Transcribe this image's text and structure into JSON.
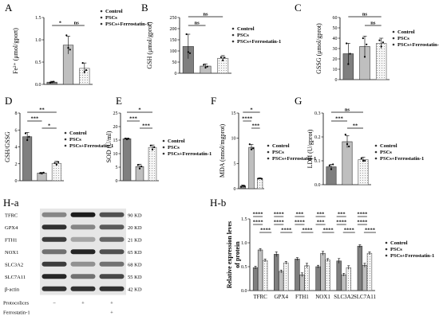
{
  "legend": [
    "Control",
    "PSCs",
    "PSCs+Ferrostatin-1"
  ],
  "styles": {
    "Control": {
      "fill": "#7f7f7f",
      "stroke": "#333333",
      "pattern": "solid"
    },
    "PSCs": {
      "fill": "#bfbfbf",
      "stroke": "#333333",
      "pattern": "solid"
    },
    "PSCs+Ferrostatin-1": {
      "fill": "#f5f5f5",
      "stroke": "#555555",
      "pattern": "dots"
    }
  },
  "chart_data": [
    {
      "id": "A",
      "panel_label": "A",
      "type": "bar",
      "ylabel": "Fe²⁺ (μmol/gport)",
      "categories": [
        "Control",
        "PSCs",
        "PSCs+Ferrostatin-1"
      ],
      "values": [
        0.05,
        0.88,
        0.36
      ],
      "errors": [
        0.02,
        0.2,
        0.12
      ],
      "points": [
        [
          0.04,
          0.05,
          0.06
        ],
        [
          1.1,
          0.82,
          0.78
        ],
        [
          0.48,
          0.28,
          0.32
        ]
      ],
      "ylim": [
        0,
        1.5
      ],
      "ticks": [
        "0.0",
        "0.5",
        "1.0",
        "1.5"
      ],
      "sig": [
        {
          "from": 0,
          "to": 1,
          "text": "*"
        },
        {
          "from": 1,
          "to": 2,
          "text": "ns"
        }
      ]
    },
    {
      "id": "B",
      "panel_label": "B",
      "type": "bar",
      "ylabel": "GSH (μmol/gprot)",
      "categories": [
        "Control",
        "PSCs",
        "PSCs+Ferrostatin-1"
      ],
      "values": [
        120,
        32,
        67
      ],
      "errors": [
        55,
        10,
        12
      ],
      "points": [
        [
          175,
          95,
          90
        ],
        [
          38,
          25,
          30
        ],
        [
          72,
          58,
          70
        ]
      ],
      "ylim": [
        0,
        250
      ],
      "ticks": [
        "0",
        "50",
        "100",
        "150",
        "200",
        "250"
      ],
      "sig": [
        {
          "from": 0,
          "to": 2,
          "text": "ns"
        },
        {
          "from": 0,
          "to": 1,
          "text": "ns"
        }
      ]
    },
    {
      "id": "C",
      "panel_label": "C",
      "type": "bar",
      "ylabel": "GSSG (μmol/gprot)",
      "categories": [
        "Control",
        "PSCs",
        "PSCs+Ferrostatin-1"
      ],
      "values": [
        25,
        32,
        35
      ],
      "errors": [
        10,
        10,
        5
      ],
      "points": [
        [
          35,
          15,
          25
        ],
        [
          40,
          22,
          34
        ],
        [
          38,
          32,
          36
        ]
      ],
      "ylim": [
        0,
        60
      ],
      "ticks": [
        "0",
        "10",
        "20",
        "30",
        "40",
        "50",
        "60"
      ],
      "sig": [
        {
          "from": 0,
          "to": 2,
          "text": "ns"
        },
        {
          "from": 1,
          "to": 2,
          "text": "ns"
        }
      ]
    },
    {
      "id": "D",
      "panel_label": "D",
      "type": "bar",
      "ylabel": "GSH/GSSG",
      "categories": [
        "Control",
        "PSCs",
        "PSCs+Ferrostatin-1"
      ],
      "values": [
        5.2,
        0.9,
        2.05
      ],
      "errors": [
        0.5,
        0.08,
        0.25
      ],
      "points": [
        [
          5.6,
          4.8,
          5.2
        ],
        [
          0.9,
          0.85,
          0.95
        ],
        [
          2.1,
          1.9,
          2.2
        ]
      ],
      "ylim": [
        0,
        8
      ],
      "ticks": [
        "0",
        "2",
        "4",
        "6",
        "8"
      ],
      "sig": [
        {
          "from": 0,
          "to": 2,
          "text": "**"
        },
        {
          "from": 0,
          "to": 1,
          "text": "***"
        },
        {
          "from": 1,
          "to": 2,
          "text": "*"
        }
      ]
    },
    {
      "id": "E",
      "panel_label": "E",
      "type": "bar",
      "ylabel": "SOD (U/ml)",
      "categories": [
        "Control",
        "PSCs",
        "PSCs+Ferrostatin-1"
      ],
      "values": [
        15.5,
        5.2,
        12.3
      ],
      "errors": [
        0.3,
        0.9,
        0.9
      ],
      "points": [
        [
          15.6,
          15.3,
          15.5
        ],
        [
          5.8,
          4.5,
          5.3
        ],
        [
          13.0,
          11.5,
          12.4
        ]
      ],
      "ylim": [
        0,
        25
      ],
      "ticks": [
        "0",
        "5",
        "10",
        "15",
        "20",
        "25"
      ],
      "sig": [
        {
          "from": 0,
          "to": 2,
          "text": "*"
        },
        {
          "from": 0,
          "to": 1,
          "text": "***"
        },
        {
          "from": 1,
          "to": 2,
          "text": "***"
        }
      ]
    },
    {
      "id": "F",
      "panel_label": "F",
      "type": "bar",
      "ylabel": "MDA (nmol/mgprot)",
      "categories": [
        "Control",
        "PSCs",
        "PSCs+Ferrostatin-1"
      ],
      "values": [
        0.5,
        8.2,
        2.0
      ],
      "errors": [
        0.2,
        0.6,
        0.1
      ],
      "points": [
        [
          0.4,
          0.6,
          0.5
        ],
        [
          8.8,
          7.8,
          8.0
        ],
        [
          2.0,
          2.05,
          1.95
        ]
      ],
      "ylim": [
        0,
        15
      ],
      "ticks": [
        "0",
        "5",
        "10",
        "15"
      ],
      "sig": [
        {
          "from": 0,
          "to": 2,
          "text": "*"
        },
        {
          "from": 0,
          "to": 1,
          "text": "****"
        },
        {
          "from": 1,
          "to": 2,
          "text": "***"
        }
      ]
    },
    {
      "id": "G",
      "panel_label": "G",
      "type": "bar",
      "ylabel": "LDH (U/gprot)",
      "categories": [
        "Control",
        "PSCs",
        "PSCs+Ferrostatin-1"
      ],
      "values": [
        0.075,
        0.18,
        0.105
      ],
      "errors": [
        0.01,
        0.025,
        0.01
      ],
      "points": [
        [
          0.08,
          0.065,
          0.085
        ],
        [
          0.21,
          0.17,
          0.16
        ],
        [
          0.11,
          0.1,
          0.1
        ]
      ],
      "ylim": [
        0,
        0.3
      ],
      "ticks": [
        "0.0",
        "0.1",
        "0.2",
        "0.3"
      ],
      "sig": [
        {
          "from": 0,
          "to": 2,
          "text": "ns"
        },
        {
          "from": 0,
          "to": 1,
          "text": "***"
        },
        {
          "from": 1,
          "to": 2,
          "text": "**"
        }
      ]
    },
    {
      "id": "H-b",
      "panel_label": "H-b",
      "type": "bar",
      "ylabel": [
        "Relative expression leves",
        "of protein"
      ],
      "categories": [
        "TFRC",
        "GPX4",
        "FTH1",
        "NOX1",
        "SLC3A2",
        "SLC7A11"
      ],
      "series": [
        {
          "name": "Control",
          "values": [
            0.48,
            0.76,
            0.66,
            0.5,
            0.62,
            0.93
          ],
          "errors": [
            0.03,
            0.05,
            0.03,
            0.03,
            0.05,
            0.03
          ]
        },
        {
          "name": "PSCs",
          "values": [
            0.85,
            0.4,
            0.33,
            0.78,
            0.33,
            0.53
          ],
          "errors": [
            0.03,
            0.03,
            0.04,
            0.04,
            0.03,
            0.04
          ]
        },
        {
          "name": "PSCs+Ferrostatin-1",
          "values": [
            0.63,
            0.58,
            0.52,
            0.64,
            0.48,
            0.78
          ],
          "errors": [
            0.03,
            0.03,
            0.05,
            0.03,
            0.04,
            0.03
          ]
        }
      ],
      "ylim": [
        0,
        1.5
      ],
      "ticks": [
        "0.0",
        "0.5",
        "1.0",
        "1.5"
      ],
      "sig_groups": [
        [
          "****",
          "****",
          "****"
        ],
        [
          "****",
          "****",
          "****"
        ],
        [
          "***",
          "****",
          "****"
        ],
        [
          "***",
          "***",
          "****"
        ],
        [
          "***",
          "****",
          "****"
        ],
        [
          "****",
          "****",
          "****"
        ]
      ]
    }
  ],
  "blot": {
    "panel_label": "H-a",
    "proteins": [
      "TFRC",
      "GPX4",
      "FTH1",
      "NOX1",
      "SLC3A2",
      "SLC7A11",
      "β-actin"
    ],
    "sizes": [
      "90 KD",
      "20 KD",
      "21 KD",
      "65 KD",
      "68 KD",
      "55 KD",
      "42 KD"
    ],
    "intensity": [
      [
        0.45,
        0.95,
        0.7
      ],
      [
        0.85,
        0.45,
        0.65
      ],
      [
        0.8,
        0.3,
        0.6
      ],
      [
        0.55,
        0.9,
        0.7
      ],
      [
        0.8,
        0.4,
        0.55
      ],
      [
        0.9,
        0.55,
        0.75
      ],
      [
        0.85,
        0.85,
        0.85
      ]
    ],
    "conditions": [
      {
        "label": "Protocolices",
        "marks": [
          "−",
          "+",
          "+"
        ]
      },
      {
        "label": "Ferrostatin-1",
        "marks": [
          "",
          "",
          "+"
        ]
      }
    ]
  }
}
